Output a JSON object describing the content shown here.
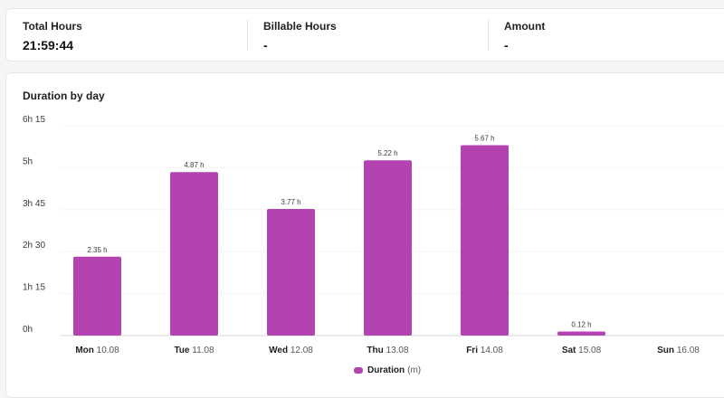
{
  "summary": {
    "total_hours": {
      "label": "Total Hours",
      "value": "21:59:44"
    },
    "billable_hours": {
      "label": "Billable Hours",
      "value": "-"
    },
    "amount": {
      "label": "Amount",
      "value": "-"
    }
  },
  "chart_data": {
    "type": "bar",
    "title": "Duration by day",
    "categories": [
      {
        "day": "Mon",
        "date": "10.08"
      },
      {
        "day": "Tue",
        "date": "11.08"
      },
      {
        "day": "Wed",
        "date": "12.08"
      },
      {
        "day": "Thu",
        "date": "13.08"
      },
      {
        "day": "Fri",
        "date": "14.08"
      },
      {
        "day": "Sat",
        "date": "15.08"
      },
      {
        "day": "Sun",
        "date": "16.08"
      }
    ],
    "series": [
      {
        "name": "Duration",
        "unit": "(m)",
        "values": [
          2.35,
          4.87,
          3.77,
          5.22,
          5.67,
          0.12,
          0
        ],
        "labels": [
          "2.35 h",
          "4.87 h",
          "3.77 h",
          "5.22 h",
          "5.67 h",
          "0.12 h",
          null
        ]
      }
    ],
    "yticks": [
      {
        "value": 0,
        "label": "0h"
      },
      {
        "value": 1.25,
        "label": "1h 15"
      },
      {
        "value": 2.5,
        "label": "2h 30"
      },
      {
        "value": 3.75,
        "label": "3h 45"
      },
      {
        "value": 5,
        "label": "5h"
      },
      {
        "value": 6.25,
        "label": "6h 15"
      }
    ],
    "ylim": [
      0,
      6.25
    ],
    "grid": true,
    "legend_position": "bottom",
    "colors": {
      "bar": "#b243b0",
      "grid": "#ececef",
      "axis": "#d7d7dc"
    }
  }
}
